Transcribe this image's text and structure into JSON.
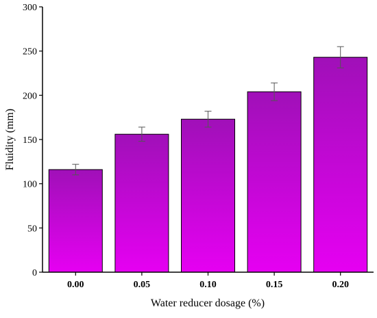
{
  "chart_data": {
    "type": "bar",
    "title": "",
    "xlabel": "Water reducer dosage (%)",
    "ylabel": "Fluidity (mm)",
    "categories": [
      "0.00",
      "0.05",
      "0.10",
      "0.15",
      "0.20"
    ],
    "values": [
      116,
      156,
      173,
      204,
      243
    ],
    "error": [
      6,
      8,
      9,
      10,
      12
    ],
    "ylim": [
      0,
      300
    ],
    "yticks": [
      0,
      50,
      100,
      150,
      200,
      250,
      300
    ],
    "grid": false,
    "legend": "none",
    "bar_gradient": [
      "#a010b8",
      "#e600f2"
    ]
  }
}
